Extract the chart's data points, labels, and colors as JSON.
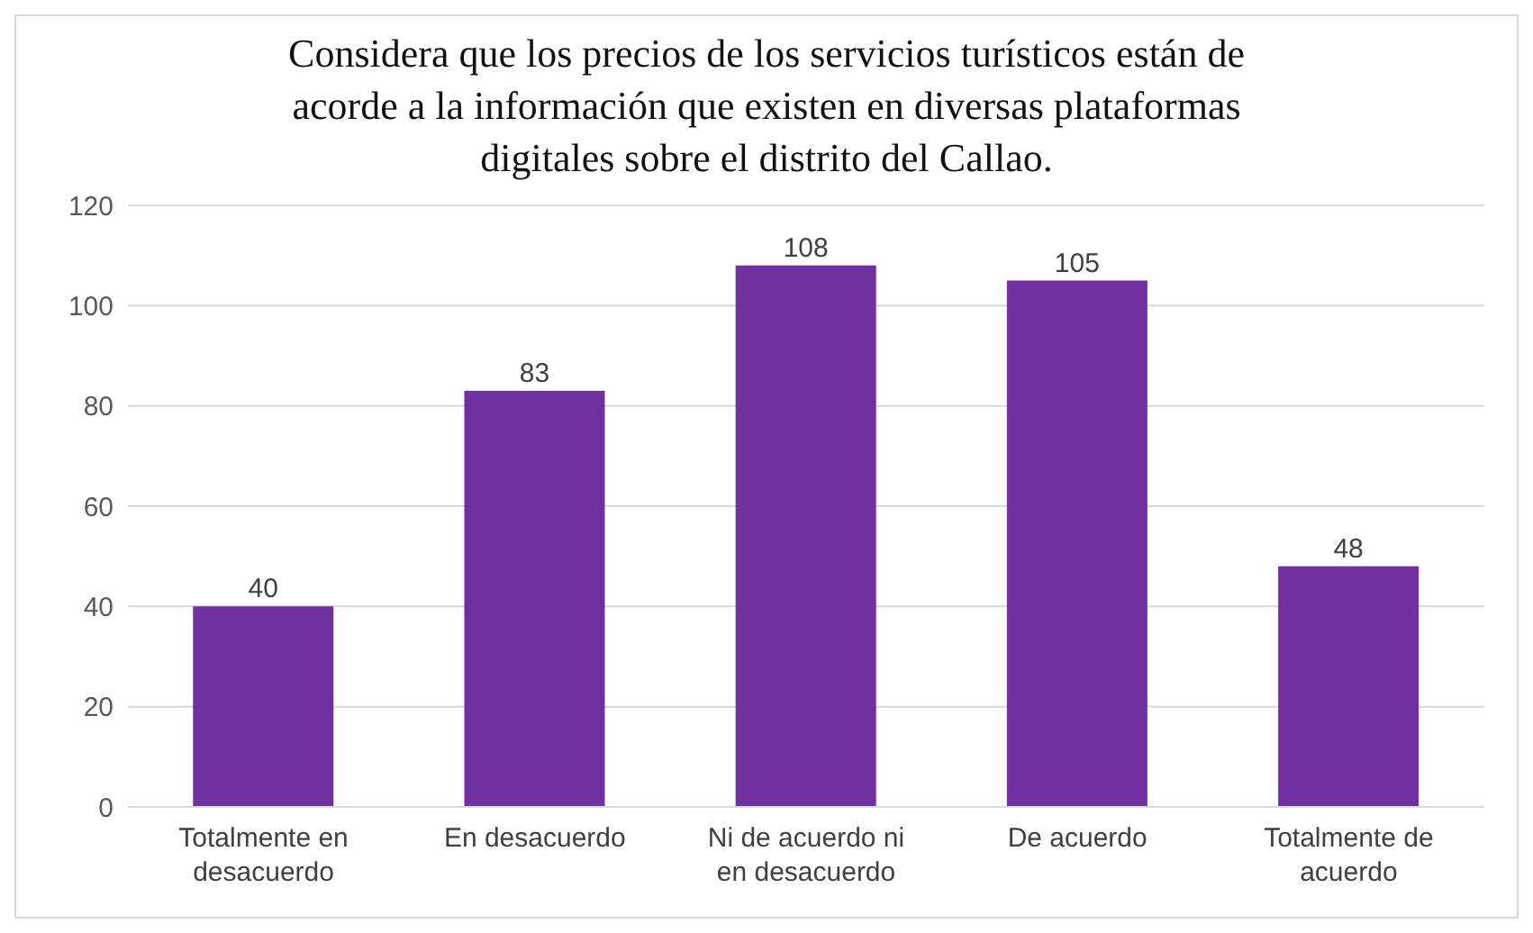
{
  "chart_data": {
    "type": "bar",
    "title": "Considera que los precios de los servicios turísticos están de acorde a la información que existen en diversas plataformas digitales sobre el distrito del Callao.",
    "categories": [
      "Totalmente en desacuerdo",
      "En desacuerdo",
      "Ni de acuerdo ni en desacuerdo",
      "De acuerdo",
      "Totalmente de acuerdo"
    ],
    "values": [
      40,
      83,
      108,
      105,
      48
    ],
    "color": "#7030a0",
    "ylim": [
      0,
      120
    ],
    "yticks": [
      0,
      20,
      40,
      60,
      80,
      100,
      120
    ],
    "grid": "y",
    "data_labels": true
  }
}
